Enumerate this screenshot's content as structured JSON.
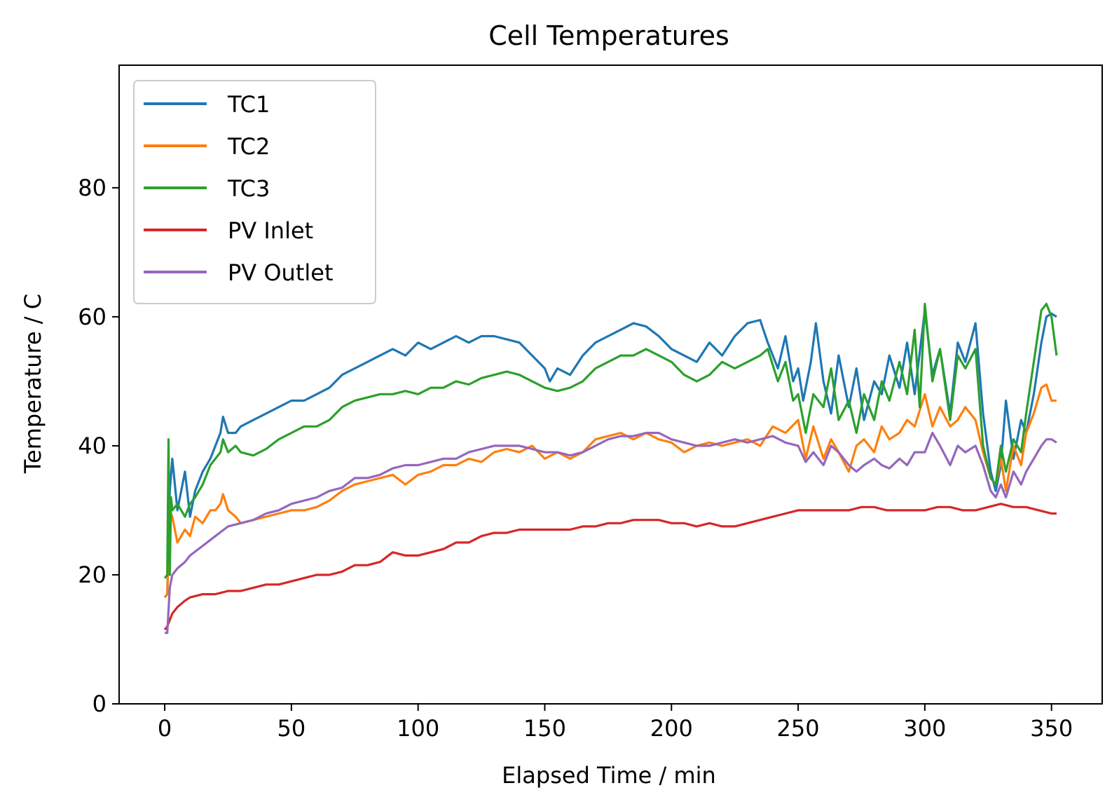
{
  "chart_data": {
    "type": "line",
    "title": "Cell Temperatures",
    "xlabel": "Elapsed Time / min",
    "ylabel": "Temperature / C",
    "xlim": [
      -18,
      370
    ],
    "ylim": [
      0,
      99
    ],
    "xticks": [
      0,
      50,
      100,
      150,
      200,
      250,
      300,
      350
    ],
    "yticks": [
      0,
      20,
      40,
      60,
      80
    ],
    "grid": false,
    "legend_position": "upper-left",
    "series": [
      {
        "name": "TC1",
        "color": "#1f77b4",
        "x": [
          0,
          1,
          2,
          3,
          5,
          8,
          10,
          12,
          15,
          18,
          20,
          22,
          23,
          25,
          28,
          30,
          35,
          40,
          45,
          50,
          55,
          60,
          65,
          70,
          75,
          80,
          85,
          90,
          95,
          100,
          105,
          110,
          115,
          120,
          125,
          130,
          135,
          140,
          145,
          150,
          152,
          155,
          160,
          165,
          170,
          175,
          180,
          185,
          190,
          195,
          200,
          205,
          210,
          215,
          220,
          225,
          230,
          235,
          238,
          242,
          245,
          248,
          250,
          252,
          255,
          257,
          260,
          263,
          266,
          270,
          273,
          276,
          280,
          283,
          286,
          290,
          293,
          296,
          300,
          303,
          306,
          310,
          313,
          316,
          320,
          323,
          326,
          328,
          330,
          332,
          335,
          338,
          340,
          343,
          346,
          348,
          350,
          352
        ],
        "y": [
          16.5,
          17,
          33,
          38,
          30,
          36,
          29,
          33,
          36,
          38,
          40,
          42,
          44.5,
          42,
          42,
          43,
          44,
          45,
          46,
          47,
          47,
          48,
          49,
          51,
          52,
          53,
          54,
          55,
          54,
          56,
          55,
          56,
          57,
          56,
          57,
          57,
          56.5,
          56,
          54,
          52,
          50,
          52,
          51,
          54,
          56,
          57,
          58,
          59,
          58.5,
          57,
          55,
          54,
          53,
          56,
          54,
          57,
          59,
          59.5,
          56,
          52,
          57,
          50,
          52,
          47,
          53,
          59,
          50,
          45,
          54,
          46,
          52,
          44,
          50,
          48,
          54,
          49,
          56,
          48,
          61,
          51,
          55,
          45,
          56,
          53,
          59,
          45,
          36,
          33,
          37,
          47,
          38,
          44,
          42,
          48,
          56,
          60,
          60.5,
          60
        ],
        "values": [
          16.5,
          17,
          33,
          38,
          30,
          36,
          29,
          33,
          36,
          38,
          40,
          42,
          44.5,
          42,
          42,
          43,
          44,
          45,
          46,
          47,
          47,
          48,
          49,
          51,
          52,
          53,
          54,
          55,
          54,
          56,
          55,
          56,
          57,
          56,
          57,
          57,
          56.5,
          56,
          54,
          52,
          50,
          52,
          51,
          54,
          56,
          57,
          58,
          59,
          58.5,
          57,
          55,
          54,
          53,
          56,
          54,
          57,
          59,
          59.5,
          56,
          52,
          57,
          50,
          52,
          47,
          53,
          59,
          50,
          45,
          54,
          46,
          52,
          44,
          50,
          48,
          54,
          49,
          56,
          48,
          61,
          51,
          55,
          45,
          56,
          53,
          59,
          45,
          36,
          33,
          37,
          47,
          38,
          44,
          42,
          48,
          56,
          60,
          60.5,
          60
        ]
      },
      {
        "name": "TC2",
        "color": "#ff7f0e",
        "x": [
          0,
          1,
          2,
          3,
          5,
          8,
          10,
          12,
          15,
          18,
          20,
          22,
          23,
          25,
          28,
          30,
          35,
          40,
          45,
          50,
          55,
          60,
          65,
          70,
          75,
          80,
          85,
          90,
          95,
          100,
          105,
          110,
          115,
          120,
          125,
          130,
          135,
          140,
          145,
          150,
          155,
          160,
          165,
          170,
          175,
          180,
          185,
          190,
          195,
          200,
          205,
          210,
          215,
          220,
          225,
          230,
          235,
          240,
          245,
          250,
          253,
          256,
          260,
          263,
          266,
          270,
          273,
          276,
          280,
          283,
          286,
          290,
          293,
          296,
          300,
          303,
          306,
          310,
          313,
          316,
          320,
          323,
          326,
          328,
          330,
          332,
          335,
          338,
          340,
          343,
          346,
          348,
          350,
          352
        ],
        "y": [
          16.5,
          17,
          30,
          29,
          25,
          27,
          26,
          29,
          28,
          30,
          30,
          31,
          32.5,
          30,
          29,
          28,
          28.5,
          29,
          29.5,
          30,
          30,
          30.5,
          31.5,
          33,
          34,
          34.5,
          35,
          35.5,
          34,
          35.5,
          36,
          37,
          37,
          38,
          37.5,
          39,
          39.5,
          39,
          40,
          38,
          39,
          38,
          39,
          41,
          41.5,
          42,
          41,
          42,
          41,
          40.5,
          39,
          40,
          40.5,
          40,
          40.5,
          41,
          40,
          43,
          42,
          44,
          38,
          43,
          38,
          41,
          39,
          36,
          40,
          41,
          39,
          43,
          41,
          42,
          44,
          43,
          48,
          43,
          46,
          43,
          44,
          46,
          44,
          39,
          35,
          34,
          38,
          33,
          40,
          37,
          42,
          45,
          49,
          49.5,
          47,
          47
        ]
      },
      {
        "name": "TC3",
        "color": "#2ca02c",
        "x": [
          0,
          1,
          1.5,
          2,
          2.5,
          3,
          5,
          8,
          10,
          12,
          15,
          18,
          20,
          22,
          23,
          25,
          28,
          30,
          35,
          40,
          45,
          50,
          55,
          60,
          65,
          70,
          75,
          80,
          85,
          90,
          95,
          100,
          105,
          110,
          115,
          120,
          125,
          130,
          135,
          140,
          145,
          150,
          155,
          160,
          165,
          170,
          175,
          180,
          185,
          190,
          195,
          200,
          205,
          210,
          215,
          220,
          225,
          230,
          235,
          238,
          242,
          245,
          248,
          250,
          253,
          256,
          260,
          263,
          266,
          270,
          273,
          276,
          280,
          283,
          286,
          290,
          293,
          296,
          298,
          300,
          303,
          306,
          310,
          313,
          316,
          320,
          323,
          326,
          328,
          330,
          332,
          335,
          338,
          340,
          343,
          346,
          348,
          350,
          352
        ],
        "y": [
          19.5,
          20,
          41,
          20,
          32,
          30,
          31,
          29,
          31,
          32,
          34,
          37,
          38,
          39,
          41,
          39,
          40,
          39,
          38.5,
          39.5,
          41,
          42,
          43,
          43,
          44,
          46,
          47,
          47.5,
          48,
          48,
          48.5,
          48,
          49,
          49,
          50,
          49.5,
          50.5,
          51,
          51.5,
          51,
          50,
          49,
          48.5,
          49,
          50,
          52,
          53,
          54,
          54,
          55,
          54,
          53,
          51,
          50,
          51,
          53,
          52,
          53,
          54,
          55,
          50,
          53,
          47,
          48,
          42,
          48,
          46,
          52,
          44,
          47,
          42,
          48,
          44,
          50,
          47,
          53,
          48,
          58,
          46,
          62,
          50,
          55,
          44,
          54,
          52,
          55,
          40,
          35,
          34,
          40,
          36,
          41,
          39,
          45,
          53,
          61,
          62,
          60,
          54
        ]
      },
      {
        "name": "PV Inlet",
        "color": "#d62728",
        "x": [
          0,
          1,
          2,
          3,
          5,
          8,
          10,
          15,
          20,
          25,
          30,
          35,
          40,
          45,
          50,
          55,
          60,
          65,
          70,
          75,
          80,
          85,
          90,
          95,
          100,
          105,
          110,
          115,
          120,
          125,
          130,
          135,
          140,
          145,
          150,
          155,
          160,
          165,
          170,
          175,
          180,
          185,
          190,
          195,
          200,
          205,
          210,
          215,
          220,
          225,
          230,
          235,
          240,
          245,
          250,
          255,
          260,
          265,
          270,
          275,
          280,
          285,
          290,
          295,
          300,
          305,
          310,
          315,
          320,
          325,
          330,
          335,
          340,
          345,
          350,
          352
        ],
        "y": [
          11.5,
          12,
          13,
          14,
          15,
          16,
          16.5,
          17,
          17,
          17.5,
          17.5,
          18,
          18.5,
          18.5,
          19,
          19.5,
          20,
          20,
          20.5,
          21.5,
          21.5,
          22,
          23.5,
          23,
          23,
          23.5,
          24,
          25,
          25,
          26,
          26.5,
          26.5,
          27,
          27,
          27,
          27,
          27,
          27.5,
          27.5,
          28,
          28,
          28.5,
          28.5,
          28.5,
          28,
          28,
          27.5,
          28,
          27.5,
          27.5,
          28,
          28.5,
          29,
          29.5,
          30,
          30,
          30,
          30,
          30,
          30.5,
          30.5,
          30,
          30,
          30,
          30,
          30.5,
          30.5,
          30,
          30,
          30.5,
          31,
          30.5,
          30.5,
          30,
          29.5,
          29.5
        ]
      },
      {
        "name": "PV Outlet",
        "color": "#9467bd",
        "x": [
          0,
          1,
          2,
          3,
          5,
          8,
          10,
          15,
          20,
          25,
          30,
          35,
          40,
          45,
          50,
          55,
          60,
          65,
          70,
          75,
          80,
          85,
          90,
          95,
          100,
          105,
          110,
          115,
          120,
          125,
          130,
          135,
          140,
          145,
          150,
          155,
          160,
          165,
          170,
          175,
          180,
          185,
          190,
          195,
          200,
          205,
          210,
          215,
          220,
          225,
          230,
          235,
          240,
          245,
          250,
          253,
          256,
          260,
          263,
          266,
          270,
          273,
          276,
          280,
          283,
          286,
          290,
          293,
          296,
          300,
          303,
          306,
          310,
          313,
          316,
          320,
          323,
          326,
          328,
          330,
          332,
          335,
          338,
          340,
          343,
          346,
          348,
          350,
          352
        ],
        "y": [
          11,
          11,
          18,
          20,
          21,
          22,
          23,
          24.5,
          26,
          27.5,
          28,
          28.5,
          29.5,
          30,
          31,
          31.5,
          32,
          33,
          33.5,
          35,
          35,
          35.5,
          36.5,
          37,
          37,
          37.5,
          38,
          38,
          39,
          39.5,
          40,
          40,
          40,
          39.5,
          39,
          39,
          38.5,
          39,
          40,
          41,
          41.5,
          41.5,
          42,
          42,
          41,
          40.5,
          40,
          40,
          40.5,
          41,
          40.5,
          41,
          41.5,
          40.5,
          40,
          37.5,
          39,
          37,
          40,
          39,
          37,
          36,
          37,
          38,
          37,
          36.5,
          38,
          37,
          39,
          39,
          42,
          40,
          37,
          40,
          39,
          40,
          37,
          33,
          32,
          34,
          32,
          36,
          34,
          36,
          38,
          40,
          41,
          41,
          40.5
        ]
      }
    ]
  }
}
